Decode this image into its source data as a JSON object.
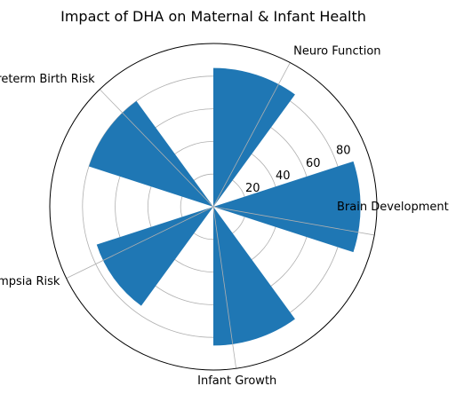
{
  "chart_data": {
    "type": "polar-bar",
    "title": "Impact of DHA on Maternal & Infant Health",
    "categories": [
      "Brain Development",
      "Neuro Function",
      "Preterm Birth Risk",
      "Pre-eclampsia Risk",
      "Infant Growth"
    ],
    "values": [
      90,
      85,
      80,
      75,
      85
    ],
    "rlim": [
      0,
      100
    ],
    "r_ticks": [
      20,
      40,
      60,
      80
    ],
    "grid": true,
    "legend": "none",
    "bar_color": "#1f77b4"
  }
}
